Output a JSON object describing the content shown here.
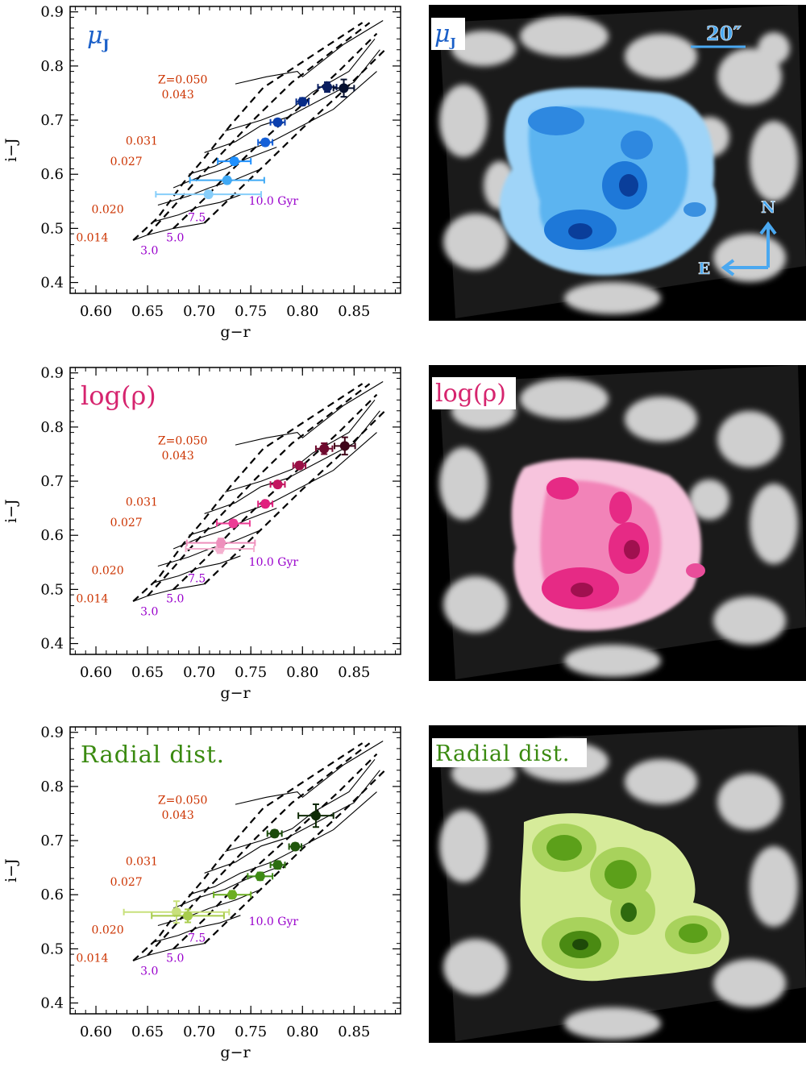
{
  "panel_titles": [
    "μ",
    "log(ρ)",
    "Radial dist."
  ],
  "title_sub_j": "J",
  "image_overlay": {
    "scale_label": "20″",
    "compass_north": "N",
    "compass_east": "E"
  },
  "colors": {
    "metal_label": "#cc3300",
    "age_label": "#9900cc",
    "panel1_title": "#1a5fc8",
    "panel2_title": "#d6246e",
    "panel3_title": "#3a8a10"
  },
  "model_grid_labels": {
    "metallicity": [
      "Z=0.050",
      "0.043",
      "0.031",
      "0.027",
      "0.020",
      "0.014"
    ],
    "ages": [
      "3.0",
      "5.0",
      "7.5",
      "10.0 Gyr"
    ]
  },
  "chart_data": [
    {
      "type": "scatter",
      "title": "μJ",
      "xlabel": "g−r",
      "ylabel": "i−J",
      "xlim": [
        0.575,
        0.895
      ],
      "ylim": [
        0.38,
        0.91
      ],
      "x_ticks": [
        "0.60",
        "0.65",
        "0.70",
        "0.75",
        "0.80",
        "0.85"
      ],
      "y_ticks": [
        "0.4",
        "0.5",
        "0.6",
        "0.7",
        "0.8",
        "0.9"
      ],
      "points": [
        {
          "x": 0.709,
          "y": 0.563,
          "xerr": 0.051,
          "yerr": 0.006,
          "color": "#87cefa"
        },
        {
          "x": 0.727,
          "y": 0.589,
          "xerr": 0.036,
          "yerr": 0.006,
          "color": "#3fa9f5"
        },
        {
          "x": 0.734,
          "y": 0.624,
          "xerr": 0.016,
          "yerr": 0.006,
          "color": "#1e90ff"
        },
        {
          "x": 0.764,
          "y": 0.659,
          "xerr": 0.007,
          "yerr": 0.006,
          "color": "#1560d8"
        },
        {
          "x": 0.776,
          "y": 0.696,
          "xerr": 0.007,
          "yerr": 0.006,
          "color": "#0b3fae"
        },
        {
          "x": 0.8,
          "y": 0.734,
          "xerr": 0.006,
          "yerr": 0.007,
          "color": "#082c88"
        },
        {
          "x": 0.824,
          "y": 0.761,
          "xerr": 0.009,
          "yerr": 0.009,
          "color": "#0a1e60"
        },
        {
          "x": 0.84,
          "y": 0.759,
          "xerr": 0.01,
          "yerr": 0.016,
          "color": "#06102e"
        }
      ]
    },
    {
      "type": "scatter",
      "title": "log(ρ)",
      "xlabel": "g−r",
      "ylabel": "i−J",
      "xlim": [
        0.575,
        0.895
      ],
      "ylim": [
        0.38,
        0.91
      ],
      "x_ticks": [
        "0.60",
        "0.65",
        "0.70",
        "0.75",
        "0.80",
        "0.85"
      ],
      "y_ticks": [
        "0.4",
        "0.5",
        "0.6",
        "0.7",
        "0.8",
        "0.9"
      ],
      "points": [
        {
          "x": 0.72,
          "y": 0.575,
          "xerr": 0.033,
          "yerr": 0.008,
          "color": "#f4b0cf"
        },
        {
          "x": 0.721,
          "y": 0.586,
          "xerr": 0.033,
          "yerr": 0.008,
          "color": "#ee8fbc"
        },
        {
          "x": 0.733,
          "y": 0.622,
          "xerr": 0.016,
          "yerr": 0.006,
          "color": "#ec3d95"
        },
        {
          "x": 0.764,
          "y": 0.658,
          "xerr": 0.007,
          "yerr": 0.006,
          "color": "#e0207e"
        },
        {
          "x": 0.776,
          "y": 0.694,
          "xerr": 0.007,
          "yerr": 0.006,
          "color": "#c4155f"
        },
        {
          "x": 0.797,
          "y": 0.729,
          "xerr": 0.006,
          "yerr": 0.006,
          "color": "#9a1045"
        },
        {
          "x": 0.821,
          "y": 0.76,
          "xerr": 0.008,
          "yerr": 0.01,
          "color": "#6e0a2e"
        },
        {
          "x": 0.841,
          "y": 0.765,
          "xerr": 0.01,
          "yerr": 0.016,
          "color": "#40051a"
        }
      ]
    },
    {
      "type": "scatter",
      "title": "Radial dist.",
      "xlabel": "g−r",
      "ylabel": "i−J",
      "xlim": [
        0.575,
        0.895
      ],
      "ylim": [
        0.38,
        0.91
      ],
      "x_ticks": [
        "0.60",
        "0.65",
        "0.70",
        "0.75",
        "0.80",
        "0.85"
      ],
      "y_ticks": [
        "0.4",
        "0.5",
        "0.6",
        "0.7",
        "0.8",
        "0.9"
      ],
      "points": [
        {
          "x": 0.678,
          "y": 0.568,
          "xerr": 0.051,
          "yerr": 0.02,
          "color": "#c8e07c"
        },
        {
          "x": 0.689,
          "y": 0.561,
          "xerr": 0.035,
          "yerr": 0.012,
          "color": "#a8cc4c"
        },
        {
          "x": 0.732,
          "y": 0.6,
          "xerr": 0.018,
          "yerr": 0.007,
          "color": "#6cae22"
        },
        {
          "x": 0.759,
          "y": 0.634,
          "xerr": 0.012,
          "yerr": 0.007,
          "color": "#3d8a14"
        },
        {
          "x": 0.776,
          "y": 0.655,
          "xerr": 0.007,
          "yerr": 0.007,
          "color": "#2c6e10"
        },
        {
          "x": 0.793,
          "y": 0.689,
          "xerr": 0.006,
          "yerr": 0.006,
          "color": "#20560c"
        },
        {
          "x": 0.773,
          "y": 0.713,
          "xerr": 0.007,
          "yerr": 0.006,
          "color": "#1a4a0a"
        },
        {
          "x": 0.813,
          "y": 0.746,
          "xerr": 0.017,
          "yerr": 0.021,
          "color": "#0e2a06"
        }
      ]
    }
  ]
}
